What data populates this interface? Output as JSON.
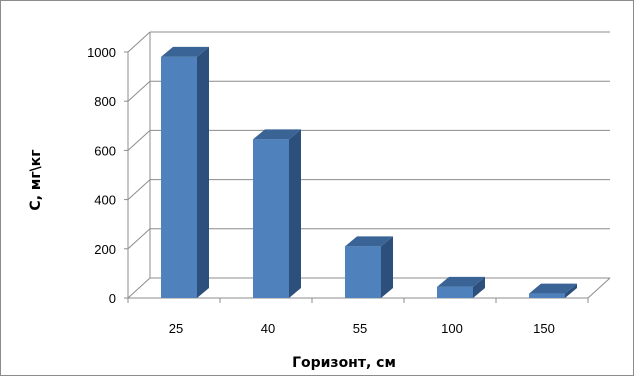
{
  "chart_data": {
    "type": "bar",
    "categories": [
      "25",
      "40",
      "55",
      "100",
      "150"
    ],
    "values": [
      980,
      645,
      210,
      45,
      18
    ],
    "xlabel": "Горизонт, см",
    "ylabel": "С, мг\\кг",
    "ylim": [
      0,
      1000
    ],
    "yticks": [
      "0",
      "200",
      "400",
      "600",
      "800",
      "1000"
    ],
    "grid": true,
    "legend": "none",
    "three_d": true,
    "colors": {
      "bar_front": "#4f81bd",
      "bar_side": "#2d4f7c",
      "bar_top": "#3a6396",
      "grid": "#8c8c8c"
    }
  }
}
